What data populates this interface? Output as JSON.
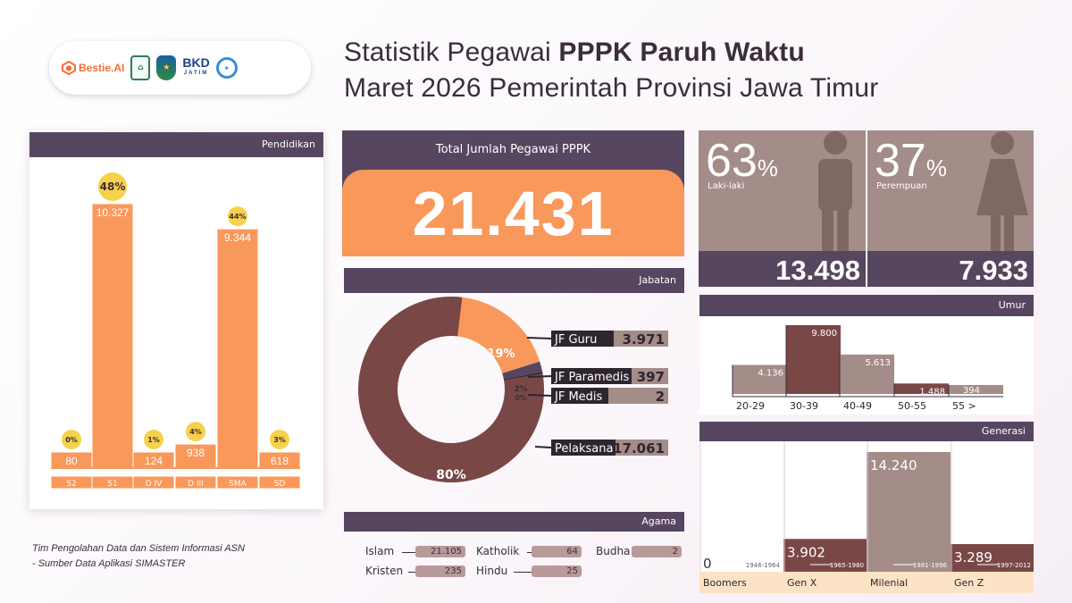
{
  "header": {
    "title_line1_pre": "Statistik Pegawai ",
    "title_line1_bold": "PPPK Paruh Waktu",
    "title_line2": "Maret 2026 Pemerintah Provinsi Jawa Timur",
    "logos": {
      "bestie": "Bestie.AI",
      "rumah_asn": "RUMAH ASN",
      "bkd": "BKD",
      "bkd_sub": "JATIM",
      "simaster": "SI MASTER"
    }
  },
  "total": {
    "label": "Total Jumlah Pegawai PPPK",
    "value": "21.431"
  },
  "gender": {
    "male": {
      "pct": "63",
      "pct_sign": "%",
      "label": "Laki-laki",
      "count": "13.498"
    },
    "female": {
      "pct": "37",
      "pct_sign": "%",
      "label": "Perempuan",
      "count": "7.933"
    }
  },
  "panels": {
    "pendidikan": "Pendidikan",
    "jabatan": "Jabatan",
    "umur": "Umur",
    "generasi": "Generasi",
    "agama": "Agama"
  },
  "agama": [
    {
      "name": "Islam",
      "value": "21.105"
    },
    {
      "name": "Kristen",
      "value": "235"
    },
    {
      "name": "Katholik",
      "value": "64"
    },
    {
      "name": "Hindu",
      "value": "25"
    },
    {
      "name": "Budha",
      "value": "2"
    }
  ],
  "footer": {
    "line1": "Tim Pengolahan Data dan Sistem Informasi ASN",
    "line2": "- Sumber Data Aplikasi SIMASTER"
  },
  "colors": {
    "purple": "#574660",
    "orange": "#f9985b",
    "maroon": "#7a4747",
    "taupe": "#a48c88",
    "yellow": "#f6d24a",
    "peach": "#fde3c6"
  },
  "chart_data": [
    {
      "id": "pendidikan",
      "type": "bar",
      "title": "Pendidikan",
      "categories": [
        "S2",
        "S1",
        "D IV",
        "D III",
        "SMA",
        "SD"
      ],
      "values": [
        80,
        10327,
        124,
        938,
        9344,
        618
      ],
      "value_labels": [
        "80",
        "10.327",
        "124",
        "938",
        "9.344",
        "618"
      ],
      "pct_labels": [
        "0%",
        "48%",
        "1%",
        "4%",
        "44%",
        "3%"
      ]
    },
    {
      "id": "jabatan",
      "type": "pie",
      "title": "Jabatan",
      "categories": [
        "JF Guru",
        "JF Paramedis",
        "JF Medis",
        "Pelaksana"
      ],
      "values": [
        3971,
        397,
        2,
        17061
      ],
      "value_labels": [
        "3.971",
        "397",
        "2",
        "17.061"
      ],
      "pct_labels": [
        "19%",
        "2%",
        "0%",
        "80%"
      ]
    },
    {
      "id": "umur",
      "type": "bar",
      "title": "Umur",
      "categories": [
        "20-29",
        "30-39",
        "40-49",
        "50-55",
        "55 >"
      ],
      "values": [
        4136,
        9800,
        5613,
        1488,
        394
      ],
      "value_labels": [
        "4.136",
        "9.800",
        "5.613",
        "1.488",
        "394"
      ]
    },
    {
      "id": "generasi",
      "type": "bar",
      "title": "Generasi",
      "categories": [
        "Boomers",
        "Gen X",
        "Milenial",
        "Gen Z"
      ],
      "ranges": [
        "1946-1964",
        "1965-1980",
        "1981-1996",
        "1997-2012"
      ],
      "values": [
        0,
        3902,
        14240,
        3289
      ],
      "value_labels": [
        "0",
        "3.902",
        "14.240",
        "3.289"
      ]
    }
  ]
}
